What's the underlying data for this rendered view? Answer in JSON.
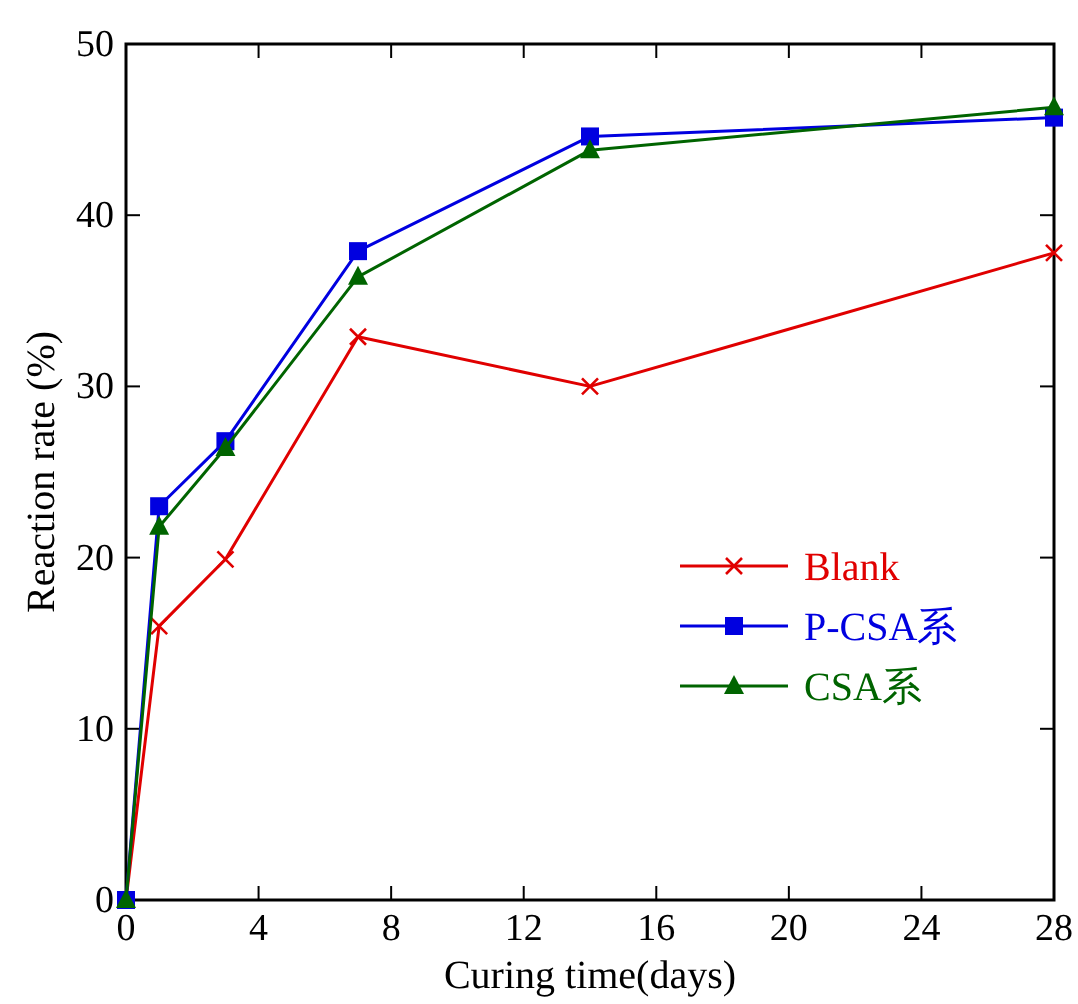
{
  "chart_data": {
    "type": "line",
    "xlabel": "Curing time(days)",
    "ylabel": "Reaction rate (%)",
    "x": [
      0,
      1,
      3,
      7,
      14,
      28
    ],
    "xlim": [
      0,
      28
    ],
    "xticks": [
      0,
      4,
      8,
      12,
      16,
      20,
      24,
      28
    ],
    "ylim": [
      0,
      50
    ],
    "yticks": [
      0,
      10,
      20,
      30,
      40,
      50
    ],
    "grid": false,
    "legend": "right",
    "series": [
      {
        "name": "Blank",
        "color": "#e00000",
        "marker": "cross",
        "values": [
          0,
          16.0,
          19.9,
          32.9,
          30.0,
          37.8
        ]
      },
      {
        "name": "P-CSA系",
        "color": "#0000e0",
        "marker": "square",
        "values": [
          0,
          23.0,
          26.8,
          37.9,
          44.6,
          45.7
        ]
      },
      {
        "name": "CSA系",
        "color": "#006400",
        "marker": "triangle",
        "values": [
          0,
          21.8,
          26.4,
          36.4,
          43.8,
          46.3
        ]
      }
    ]
  }
}
